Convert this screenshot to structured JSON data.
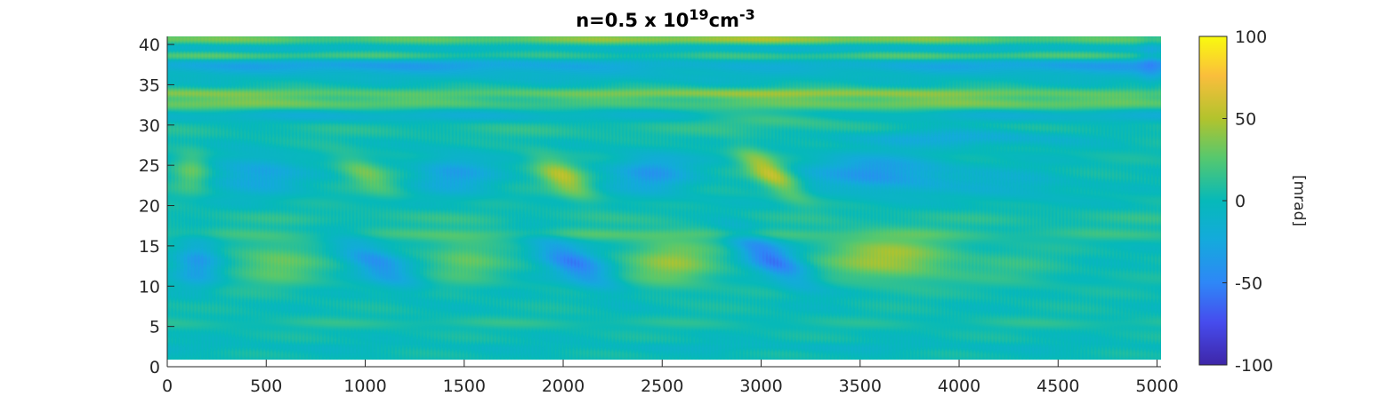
{
  "chart_data": {
    "type": "heatmap",
    "title": {
      "prefix": "n=0.5 x 10",
      "superscript": "19",
      "unit": "cm",
      "unit_superscript": "-3"
    },
    "x_range": [
      0,
      5020
    ],
    "y_range": [
      0,
      41
    ],
    "x_data_extent": [
      0,
      5020
    ],
    "y_data_extent": [
      1,
      41
    ],
    "x_ticks": [
      "0",
      "500",
      "1000",
      "1500",
      "2000",
      "2500",
      "3000",
      "3500",
      "4000",
      "4500",
      "5000"
    ],
    "x_tick_values": [
      0,
      500,
      1000,
      1500,
      2000,
      2500,
      3000,
      3500,
      4000,
      4500,
      5000
    ],
    "y_ticks": [
      "0",
      "5",
      "10",
      "15",
      "20",
      "25",
      "30",
      "35",
      "40"
    ],
    "y_tick_values": [
      0,
      5,
      10,
      15,
      20,
      25,
      30,
      35,
      40
    ],
    "colormap": "parula",
    "colorbar": {
      "label": "[mrad]",
      "range": [
        -100,
        100
      ],
      "ticks": [
        "100",
        "50",
        "0",
        "-50",
        "-100"
      ],
      "tick_values": [
        100,
        50,
        0,
        -50,
        -100
      ]
    },
    "horizontal_bands": [
      {
        "y": 40.7,
        "value": 45,
        "width": 0.6
      },
      {
        "y": 39.5,
        "value": -15,
        "width": 0.7
      },
      {
        "y": 38.6,
        "value": 30,
        "width": 0.6
      },
      {
        "y": 37.5,
        "value": -35,
        "width": 1.0
      },
      {
        "y": 36.0,
        "value": -10,
        "width": 0.8
      },
      {
        "y": 34.0,
        "value": 40,
        "width": 0.6
      },
      {
        "y": 32.7,
        "value": 32,
        "width": 0.8
      },
      {
        "y": 31.2,
        "value": -18,
        "width": 0.8
      },
      {
        "y": 29.5,
        "value": 8,
        "width": 1.0
      },
      {
        "y": 18.5,
        "value": 8,
        "width": 0.8
      },
      {
        "y": 16.5,
        "value": 18,
        "width": 0.7
      },
      {
        "y": 5.5,
        "value": 8,
        "width": 0.6
      },
      {
        "y": 2.5,
        "value": -8,
        "width": 0.6
      }
    ],
    "blobs": [
      {
        "x": 120,
        "y": 24.5,
        "value": 28,
        "sx": 90,
        "sy": 2.6,
        "tilt": 0
      },
      {
        "x": 450,
        "y": 24.0,
        "value": -30,
        "sx": 220,
        "sy": 2.6,
        "tilt": 0
      },
      {
        "x": 1000,
        "y": 24.0,
        "value": 30,
        "sx": 110,
        "sy": 2.5,
        "tilt": 40
      },
      {
        "x": 1450,
        "y": 24.0,
        "value": -32,
        "sx": 190,
        "sy": 2.6,
        "tilt": 0
      },
      {
        "x": 2000,
        "y": 23.5,
        "value": 48,
        "sx": 110,
        "sy": 2.6,
        "tilt": 35
      },
      {
        "x": 2450,
        "y": 24.0,
        "value": -36,
        "sx": 200,
        "sy": 2.6,
        "tilt": 0
      },
      {
        "x": 3050,
        "y": 24.0,
        "value": 55,
        "sx": 100,
        "sy": 3.0,
        "tilt": 40
      },
      {
        "x": 3600,
        "y": 24.0,
        "value": -40,
        "sx": 350,
        "sy": 2.4,
        "tilt": 0
      },
      {
        "x": 4300,
        "y": 22.5,
        "value": -15,
        "sx": 300,
        "sy": 2.0,
        "tilt": 0
      },
      {
        "x": 4000,
        "y": 28.5,
        "value": -25,
        "sx": 600,
        "sy": 1.0,
        "tilt": 0
      },
      {
        "x": 3100,
        "y": 30.8,
        "value": 20,
        "sx": 350,
        "sy": 1.0,
        "tilt": 0
      },
      {
        "x": 150,
        "y": 13.0,
        "value": -38,
        "sx": 110,
        "sy": 3.0,
        "tilt": 0
      },
      {
        "x": 550,
        "y": 13.0,
        "value": 28,
        "sx": 220,
        "sy": 2.8,
        "tilt": 0
      },
      {
        "x": 1050,
        "y": 13.0,
        "value": -42,
        "sx": 140,
        "sy": 3.2,
        "tilt": 45
      },
      {
        "x": 1500,
        "y": 13.5,
        "value": 25,
        "sx": 200,
        "sy": 3.0,
        "tilt": 0
      },
      {
        "x": 2050,
        "y": 13.0,
        "value": -52,
        "sx": 140,
        "sy": 3.3,
        "tilt": 45
      },
      {
        "x": 2550,
        "y": 13.0,
        "value": 38,
        "sx": 230,
        "sy": 3.0,
        "tilt": 0
      },
      {
        "x": 3050,
        "y": 13.5,
        "value": -58,
        "sx": 130,
        "sy": 3.4,
        "tilt": 45
      },
      {
        "x": 3650,
        "y": 13.5,
        "value": 45,
        "sx": 320,
        "sy": 2.8,
        "tilt": 0
      },
      {
        "x": 4300,
        "y": 12.0,
        "value": 10,
        "sx": 250,
        "sy": 2.5,
        "tilt": 0
      },
      {
        "x": 4970,
        "y": 38.0,
        "value": -20,
        "sx": 60,
        "sy": 3.0,
        "tilt": 0
      }
    ]
  }
}
